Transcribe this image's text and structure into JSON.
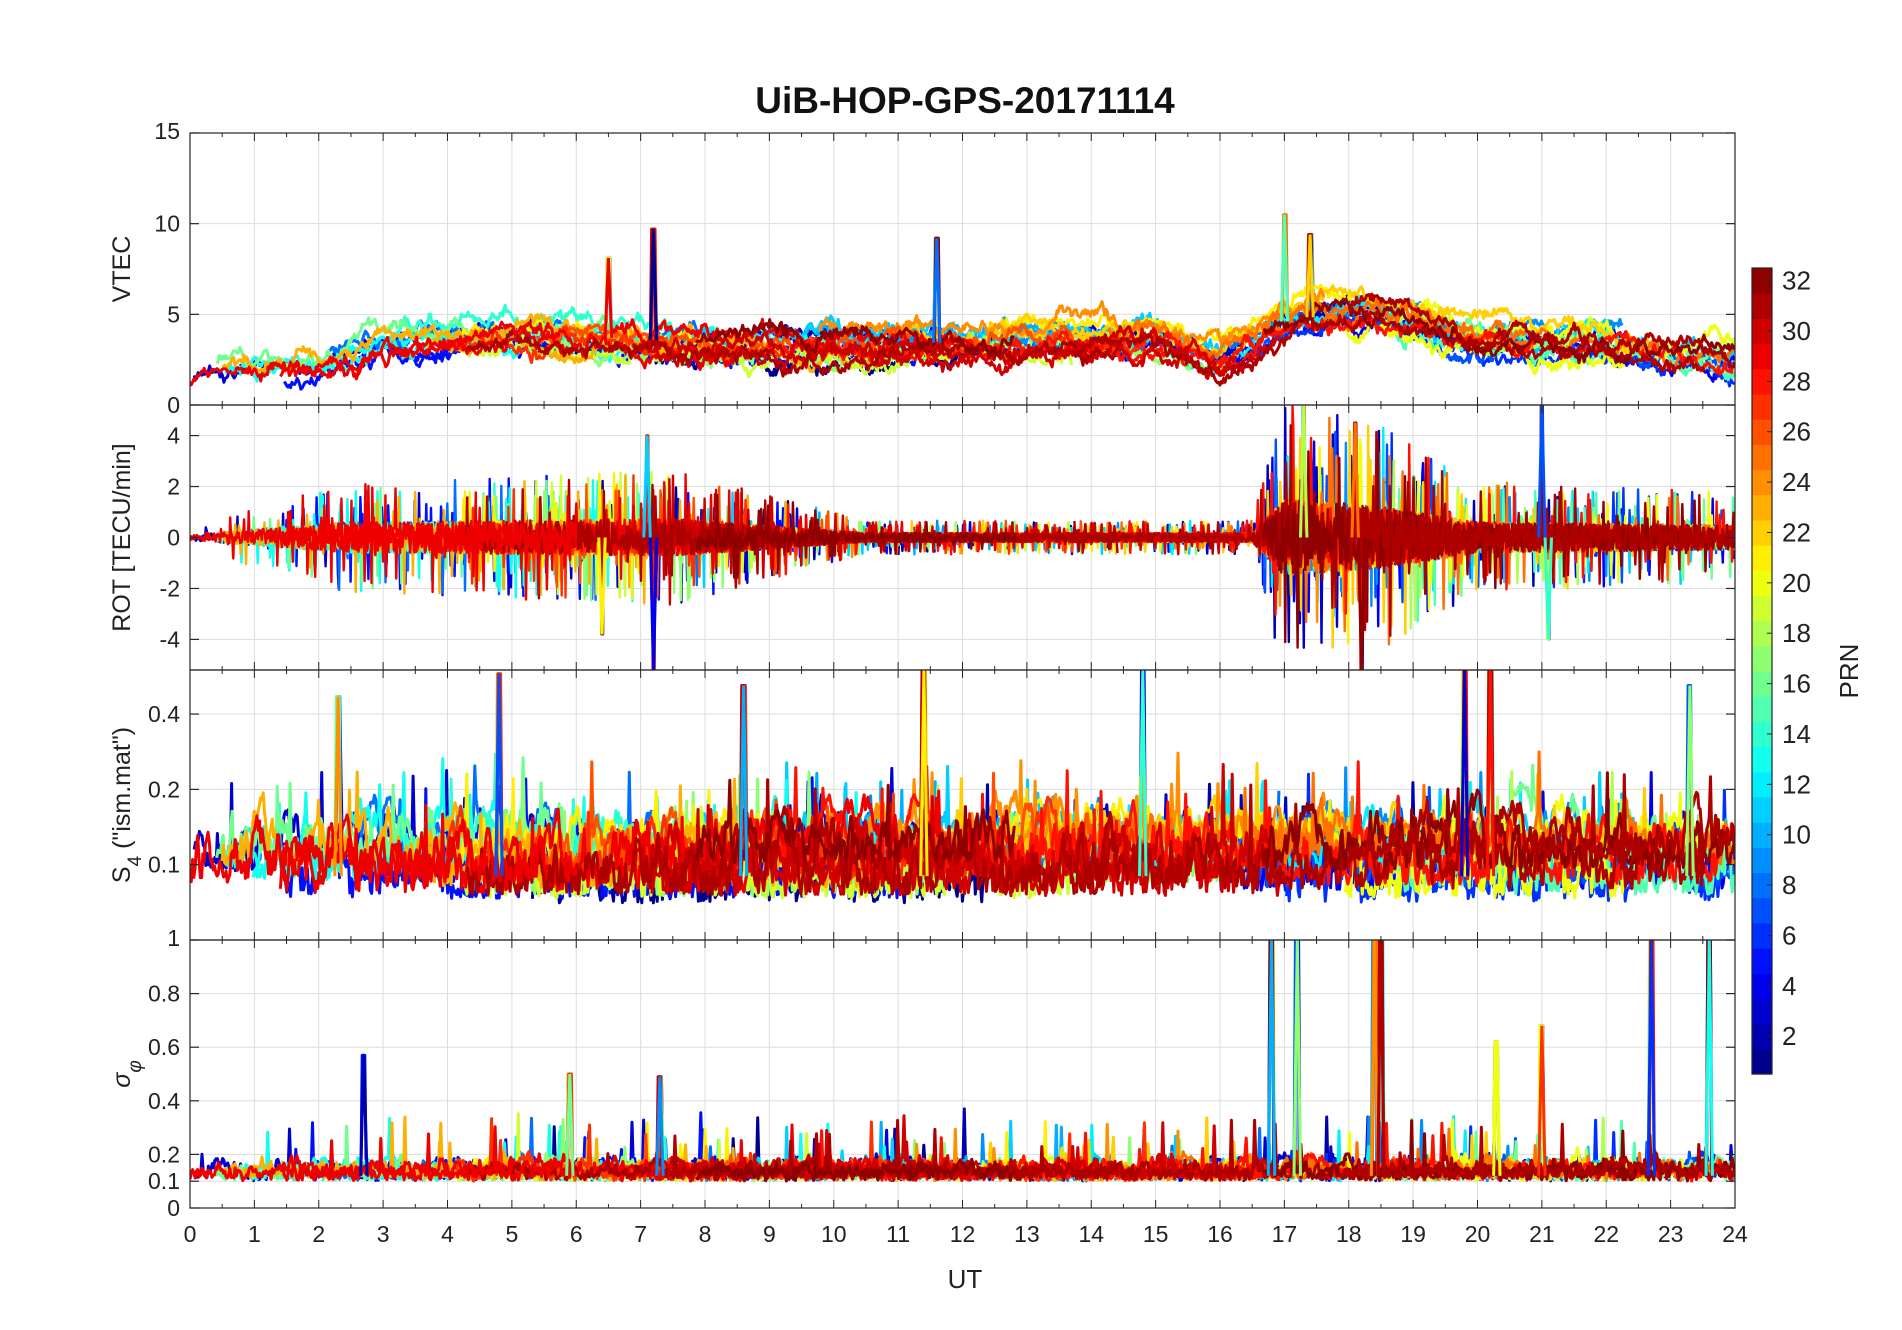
{
  "chart_data": {
    "type": "line",
    "title": "UiB-HOP-GPS-20171114",
    "xlabel": "UT",
    "x_ticks": [
      "0",
      "1",
      "2",
      "3",
      "4",
      "5",
      "6",
      "7",
      "8",
      "9",
      "10",
      "11",
      "12",
      "13",
      "14",
      "15",
      "16",
      "17",
      "18",
      "19",
      "20",
      "21",
      "22",
      "23",
      "24"
    ],
    "xlim": [
      0,
      24
    ],
    "grid": true,
    "colormap": "jet",
    "colorbar": {
      "label": "PRN",
      "range": [
        1,
        32
      ],
      "ticks": [
        "2",
        "4",
        "6",
        "8",
        "10",
        "12",
        "14",
        "16",
        "18",
        "20",
        "22",
        "24",
        "26",
        "28",
        "30",
        "32"
      ]
    },
    "panels": [
      {
        "id": "vtec",
        "ylabel": "VTEC",
        "ylim": [
          0,
          15
        ],
        "y_ticks": [
          "0",
          "5",
          "10",
          "15"
        ],
        "series_profile": {
          "baseline": [
            [
              0,
              1.8
            ],
            [
              2,
              2.4
            ],
            [
              3,
              3.6
            ],
            [
              5,
              4.0
            ],
            [
              7,
              3.6
            ],
            [
              9,
              3.4
            ],
            [
              11,
              3.4
            ],
            [
              13,
              3.5
            ],
            [
              15,
              3.6
            ],
            [
              16,
              2.4
            ],
            [
              17,
              4.6
            ],
            [
              18,
              5.2
            ],
            [
              19,
              4.6
            ],
            [
              20,
              3.6
            ],
            [
              22,
              3.4
            ],
            [
              24,
              2.6
            ]
          ],
          "peaks": [
            [
              7.2,
              9.7
            ],
            [
              11.6,
              9.2
            ],
            [
              17.0,
              10.5
            ],
            [
              17.4,
              9.4
            ],
            [
              6.5,
              8.1
            ]
          ]
        }
      },
      {
        "id": "rot",
        "ylabel": "ROT [TECU/min]",
        "ylim": [
          -5.2,
          5.2
        ],
        "y_ticks": [
          "-4",
          "-2",
          "0",
          "2",
          "4"
        ],
        "series_profile": {
          "baseline": [
            [
              0,
              0
            ],
            [
              24,
              0
            ]
          ],
          "amplitude": [
            [
              0,
              0.2
            ],
            [
              2.5,
              1.0
            ],
            [
              7.5,
              1.2
            ],
            [
              10.5,
              0.3
            ],
            [
              16.5,
              0.3
            ],
            [
              17,
              2.5
            ],
            [
              18.5,
              2.0
            ],
            [
              20,
              1.0
            ],
            [
              24,
              0.8
            ]
          ],
          "peaks": [
            [
              7.2,
              -5.2
            ],
            [
              7.1,
              4.0
            ],
            [
              17.3,
              5.2
            ],
            [
              18.1,
              4.5
            ],
            [
              18.2,
              -5.2
            ],
            [
              21.0,
              5.2
            ],
            [
              21.1,
              -4.0
            ],
            [
              6.4,
              -3.8
            ]
          ]
        }
      },
      {
        "id": "s4",
        "ylabel": "S4 (\"ism.mat\")",
        "ylabel_main": "S",
        "ylabel_sub": "4",
        "ylabel_rest": " (\"ism.mat\")",
        "ylim": [
          0.05,
          0.6
        ],
        "y_scale": "log",
        "y_ticks": [
          "0.1",
          "0.2",
          "0.4"
        ],
        "y_tick_values": [
          0.1,
          0.2,
          0.4
        ],
        "series_profile": {
          "baseline": [
            [
              0,
              0.09
            ],
            [
              24,
              0.09
            ]
          ],
          "peaks": [
            [
              4.8,
              0.58
            ],
            [
              14.8,
              0.6
            ],
            [
              11.4,
              0.6
            ],
            [
              20.2,
              0.6
            ],
            [
              19.8,
              0.6
            ],
            [
              8.6,
              0.52
            ],
            [
              23.3,
              0.52
            ],
            [
              2.3,
              0.47
            ]
          ]
        }
      },
      {
        "id": "sigma_phi",
        "ylabel": "σφ",
        "ylabel_main": "σ",
        "ylabel_sub": "φ",
        "ylim": [
          0,
          1
        ],
        "y_ticks": [
          "0",
          "0.1",
          "0.2",
          "0.4",
          "0.6",
          "0.8",
          "1"
        ],
        "y_tick_values": [
          0,
          0.1,
          0.2,
          0.4,
          0.6,
          0.8,
          1
        ],
        "series_profile": {
          "baseline": [
            [
              0,
              0.12
            ],
            [
              24,
              0.12
            ]
          ],
          "peaks": [
            [
              16.8,
              1.0
            ],
            [
              17.2,
              1.0
            ],
            [
              18.4,
              1.0
            ],
            [
              18.5,
              1.0
            ],
            [
              22.7,
              1.0
            ],
            [
              23.6,
              1.0
            ],
            [
              20.3,
              0.62
            ],
            [
              21.0,
              0.68
            ],
            [
              2.7,
              0.57
            ],
            [
              7.3,
              0.49
            ],
            [
              5.9,
              0.5
            ]
          ]
        }
      }
    ]
  }
}
